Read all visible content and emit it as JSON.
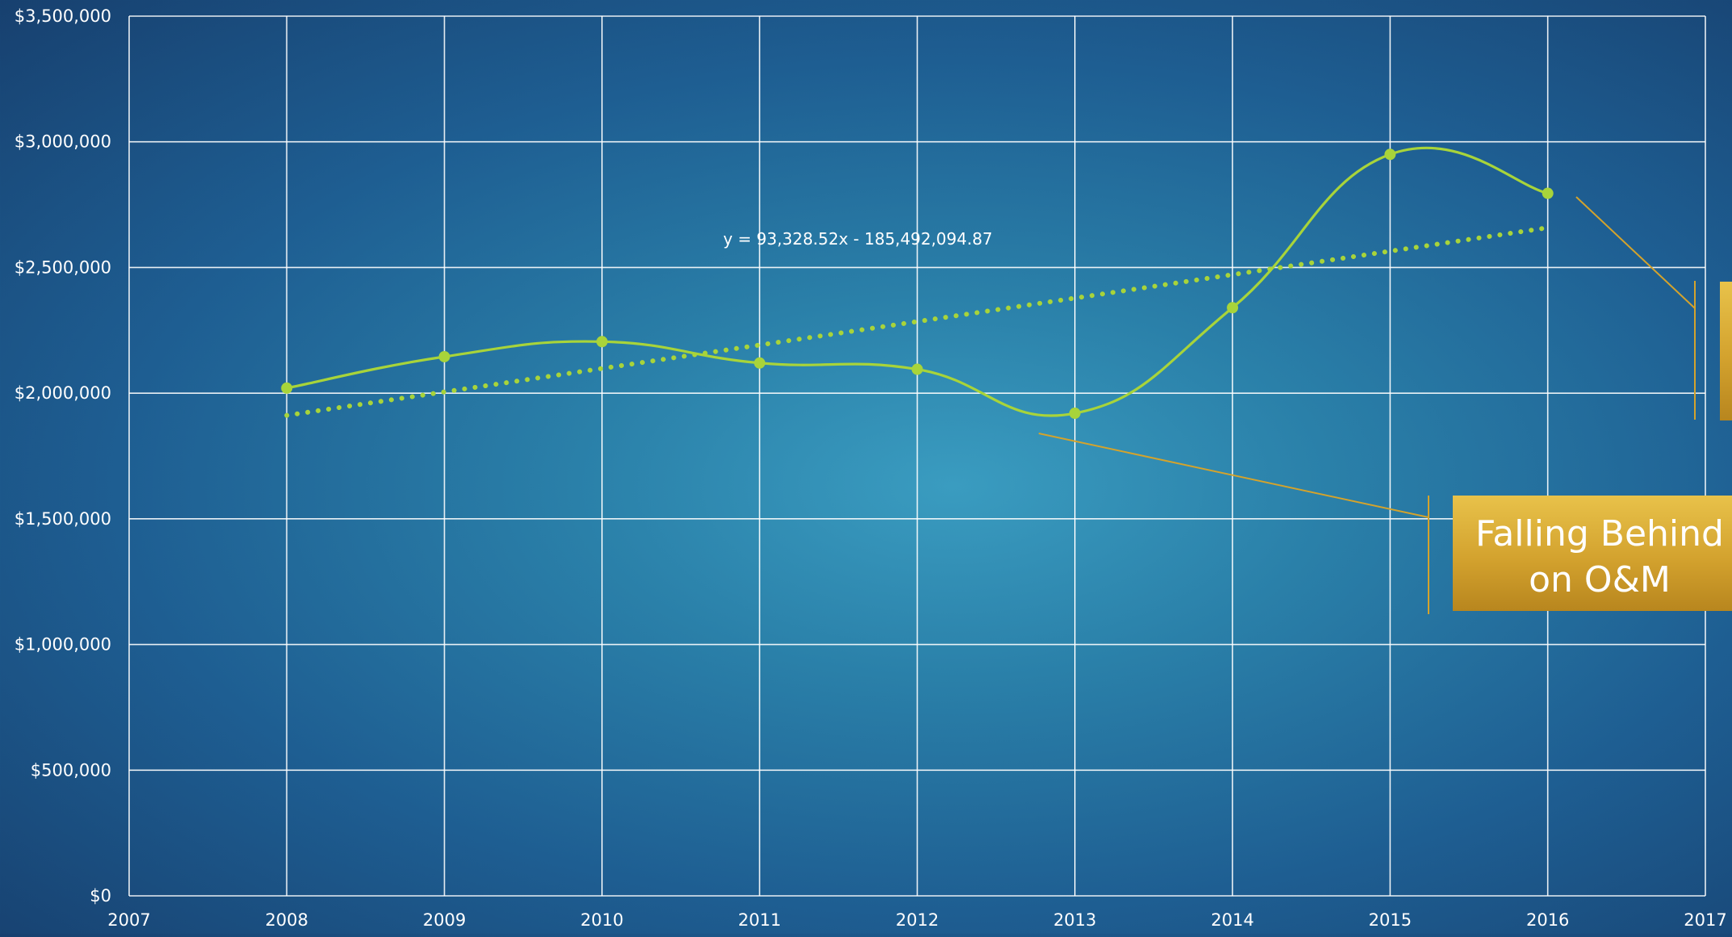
{
  "chart_data": {
    "type": "line",
    "title": "",
    "xlabel": "",
    "ylabel": "",
    "xlim": [
      2007,
      2017
    ],
    "ylim": [
      0,
      3500000
    ],
    "x_ticks": [
      2007,
      2008,
      2009,
      2010,
      2011,
      2012,
      2013,
      2014,
      2015,
      2016,
      2017
    ],
    "x_tick_labels": [
      "2007",
      "2008",
      "2009",
      "2010",
      "2011",
      "2012",
      "2013",
      "2014",
      "2015",
      "2016",
      "2017"
    ],
    "y_ticks": [
      0,
      500000,
      1000000,
      1500000,
      2000000,
      2500000,
      3000000,
      3500000
    ],
    "y_tick_labels": [
      "$0",
      "$500,000",
      "$1,000,000",
      "$1,500,000",
      "$2,000,000",
      "$2,500,000",
      "$3,000,000",
      "$3,500,000"
    ],
    "grid": true,
    "legend": "none",
    "series": [
      {
        "x": [
          2008,
          2009,
          2010,
          2011,
          2012,
          2013,
          2014,
          2015,
          2016
        ],
        "values": [
          2020000,
          2145000,
          2205000,
          2120000,
          2095000,
          1920000,
          2340000,
          2950000,
          2795000
        ],
        "color": "#a8d43a",
        "style": "smoothed-line-with-markers"
      }
    ],
    "trendline": {
      "equation": "y = 93,328.52x - 185,492,094.87",
      "slope": 93328.52,
      "intercept": -185492094.87,
      "x_range": [
        2008,
        2016
      ],
      "color": "#a8d43a",
      "style": "dotted"
    },
    "annotations": [
      {
        "text": "Falling Behind on O&M",
        "line1": "Falling Behind",
        "line2": "on O&M",
        "style": "gold-callout"
      },
      {
        "text": "",
        "style": "gold-callout-clipped"
      }
    ]
  },
  "colors": {
    "grid": "#ffffff",
    "series": "#a8d43a",
    "callout": "#d4a32c",
    "callout_text": "#ffffff",
    "label_text": "#ffffff"
  }
}
